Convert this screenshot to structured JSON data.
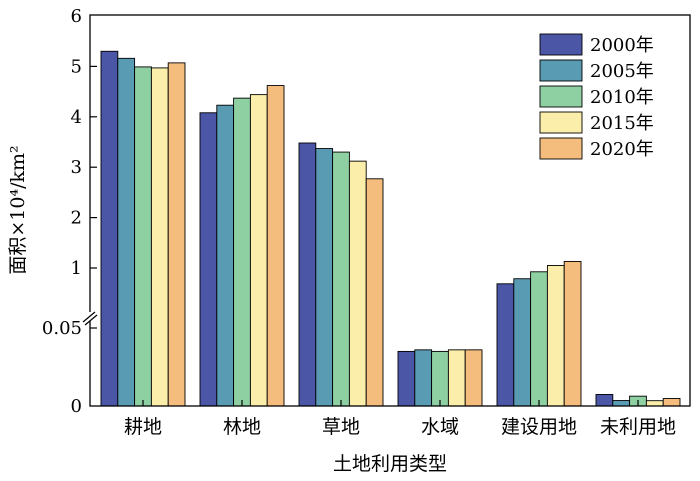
{
  "chart_data": {
    "type": "bar",
    "xlabel": "土地利用类型",
    "ylabel": "面积×10⁴/km²",
    "categories": [
      "耕地",
      "林地",
      "草地",
      "水域",
      "建设用地",
      "未利用地"
    ],
    "series": [
      {
        "name": "2000年",
        "color": "#4b56a6",
        "values": [
          5.3,
          4.08,
          3.48,
          0.035,
          0.75,
          0.0074
        ]
      },
      {
        "name": "2005年",
        "color": "#5a9bb4",
        "values": [
          5.16,
          4.23,
          3.37,
          0.036,
          0.83,
          0.0035
        ]
      },
      {
        "name": "2010年",
        "color": "#8fd0a3",
        "values": [
          4.99,
          4.37,
          3.3,
          0.035,
          0.94,
          0.0063
        ]
      },
      {
        "name": "2015年",
        "color": "#fbeeab",
        "values": [
          4.97,
          4.44,
          3.12,
          0.036,
          1.05,
          0.0034
        ]
      },
      {
        "name": "2020年",
        "color": "#f4bd7e",
        "values": [
          5.07,
          4.62,
          2.77,
          0.036,
          1.13,
          0.0048
        ]
      }
    ],
    "y_ticks": [
      "0",
      "0.05",
      "1",
      "2",
      "3",
      "4",
      "5",
      "6"
    ],
    "y_axis_break": true,
    "y_scale": "broken: 0–0.05 lower segment, 0.05–6 upper segment",
    "ylim": [
      0,
      6
    ],
    "grid": false,
    "legend_position": "top-right"
  }
}
